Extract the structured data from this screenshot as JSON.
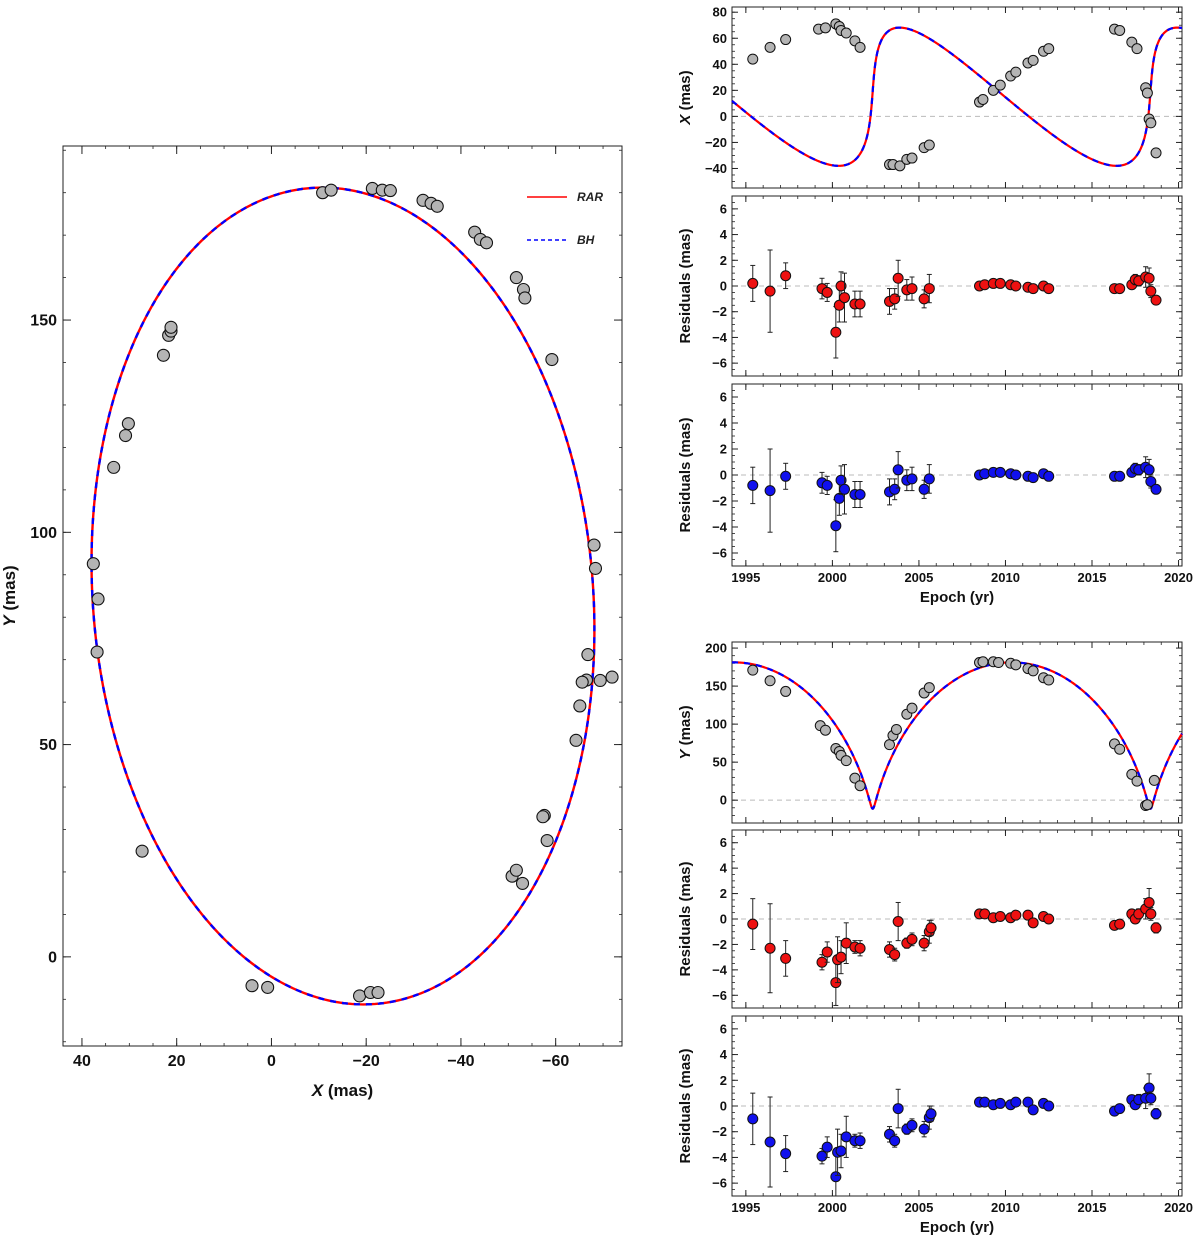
{
  "chart_data": [
    {
      "id": "orbit",
      "type": "scatter",
      "title": "",
      "xlabel_var": "X",
      "xlabel_unit": " (mas)",
      "ylabel_var": "Y",
      "ylabel_unit": " (mas)",
      "xlim": [
        44,
        -74
      ],
      "ylim": [
        -21,
        191
      ],
      "xticks": [
        40,
        20,
        0,
        -20,
        -40,
        -60
      ],
      "yticks": [
        0,
        50,
        100,
        150
      ],
      "legend_position": "top-right",
      "legend": [
        {
          "name": "RAR",
          "color": "#ff0000",
          "style": "solid"
        },
        {
          "name": "BH",
          "color": "#0000ff",
          "style": "dashed"
        }
      ],
      "orbit_model": {
        "center_x": -15.1,
        "center_y": 85.0,
        "semi_x": 52.9,
        "semi_y": 96.2,
        "y_axis_x": -10.0
      },
      "points": {
        "x": [
          -10.8,
          -12.6,
          -21.3,
          -23.4,
          -25.1,
          -32.0,
          -33.7,
          -35.0,
          -42.9,
          -44.1,
          -45.4,
          -51.7,
          -53.2,
          -53.5,
          -59.2,
          -68.1,
          -68.4,
          -66.8,
          -66.5,
          -69.4,
          -71.9,
          -65.6,
          -65.1,
          -64.3,
          -57.6,
          -57.3,
          -58.2,
          -50.8,
          -51.7,
          -53.0,
          -18.6,
          -20.9,
          -22.5,
          4.1,
          0.8,
          27.3,
          37.6,
          36.6,
          36.8,
          33.3,
          30.8,
          30.2,
          22.8,
          21.7,
          21.2,
          21.2
        ],
        "y": [
          180,
          180.6,
          181,
          180.6,
          180.5,
          178.2,
          177.5,
          176.8,
          170.7,
          169,
          168.2,
          160,
          157.2,
          155.2,
          140.7,
          97,
          91.5,
          71.2,
          65.2,
          65.1,
          65.9,
          64.7,
          59.1,
          51,
          33.3,
          33,
          27.4,
          19,
          20.4,
          17.3,
          -9.2,
          -8.4,
          -8.4,
          -6.8,
          -7.2,
          24.9,
          92.6,
          84.3,
          71.8,
          115.3,
          122.8,
          125.6,
          141.7,
          146.4,
          147.4,
          148.3
        ]
      }
    },
    {
      "id": "x-vs-epoch",
      "type": "line",
      "title": "",
      "xlabel": "",
      "ylabel_var": "X",
      "ylabel_unit": " (mas)",
      "xlim": [
        1994.2,
        2020.2
      ],
      "ylim": [
        -55,
        84
      ],
      "yticks": [
        -40,
        -20,
        0,
        20,
        40,
        60,
        80
      ],
      "model_period_yr": 16.05,
      "model_lines": [
        "RAR",
        "BH"
      ],
      "points": {
        "x": [
          1995.4,
          1996.4,
          1997.3,
          1999.2,
          1999.6,
          2000.2,
          2000.4,
          2000.5,
          2000.8,
          2001.3,
          2001.6,
          2003.3,
          2003.5,
          2003.9,
          2004.3,
          2004.6,
          2005.3,
          2005.6,
          2008.5,
          2008.7,
          2009.3,
          2009.7,
          2010.3,
          2010.6,
          2011.3,
          2011.6,
          2012.2,
          2012.5,
          2016.3,
          2016.6,
          2017.3,
          2017.6,
          2018.1,
          2018.2,
          2018.3,
          2018.4,
          2018.7
        ],
        "y": [
          44,
          53,
          59,
          67,
          68,
          71,
          69,
          66,
          64,
          58,
          53,
          -37,
          -37,
          -38,
          -33,
          -32,
          -24,
          -22,
          11,
          13,
          20,
          24,
          31,
          34,
          41,
          43,
          50,
          52,
          67,
          66,
          57,
          52,
          22,
          18,
          -2,
          -5,
          -28
        ]
      }
    },
    {
      "id": "x-residuals-rar",
      "type": "scatter",
      "title": "",
      "xlabel": "",
      "ylabel": "Residuals (mas)",
      "series_color": "#ee1111",
      "xlim": [
        1994.2,
        2020.2
      ],
      "ylim": [
        -7,
        7
      ],
      "yticks": [
        -6,
        -4,
        -2,
        0,
        2,
        4,
        6
      ],
      "points": {
        "x": [
          1995.4,
          1996.4,
          1997.3,
          1999.4,
          1999.7,
          2000.2,
          2000.4,
          2000.5,
          2000.7,
          2001.3,
          2001.6,
          2003.3,
          2003.6,
          2003.8,
          2004.3,
          2004.6,
          2005.3,
          2005.6,
          2008.5,
          2008.8,
          2009.3,
          2009.7,
          2010.3,
          2010.6,
          2011.3,
          2011.6,
          2012.2,
          2012.5,
          2016.3,
          2016.6,
          2017.3,
          2017.5,
          2017.7,
          2018.1,
          2018.3,
          2018.4,
          2018.7
        ],
        "y": [
          0.2,
          -0.4,
          0.8,
          -0.2,
          -0.5,
          -3.6,
          -1.5,
          0.0,
          -0.9,
          -1.4,
          -1.4,
          -1.2,
          -1.0,
          0.6,
          -0.3,
          -0.2,
          -1.0,
          -0.2,
          0.0,
          0.1,
          0.2,
          0.2,
          0.1,
          0.0,
          -0.1,
          -0.2,
          0.0,
          -0.2,
          -0.2,
          -0.2,
          0.1,
          0.5,
          0.4,
          0.7,
          0.6,
          -0.4,
          -1.1
        ],
        "err": [
          1.4,
          3.2,
          1.0,
          0.8,
          0.7,
          2.0,
          1.3,
          1.1,
          1.9,
          1.0,
          1.0,
          1.0,
          0.8,
          1.4,
          0.8,
          0.9,
          0.7,
          1.1,
          0.2,
          0.2,
          0.2,
          0.2,
          0.2,
          0.2,
          0.2,
          0.2,
          0.2,
          0.2,
          0.2,
          0.2,
          0.3,
          0.4,
          0.4,
          0.8,
          0.8,
          0.5,
          0.3
        ]
      }
    },
    {
      "id": "x-residuals-bh",
      "type": "scatter",
      "title": "",
      "xlabel": "Epoch (yr)",
      "ylabel": "Residuals (mas)",
      "series_color": "#1111ee",
      "xlim": [
        1994.2,
        2020.2
      ],
      "ylim": [
        -7,
        7
      ],
      "yticks": [
        -6,
        -4,
        -2,
        0,
        2,
        4,
        6
      ],
      "xticks": [
        1995,
        2000,
        2005,
        2010,
        2015,
        2020
      ],
      "points": {
        "x": [
          1995.4,
          1996.4,
          1997.3,
          1999.4,
          1999.7,
          2000.2,
          2000.4,
          2000.5,
          2000.7,
          2001.3,
          2001.6,
          2003.3,
          2003.6,
          2003.8,
          2004.3,
          2004.6,
          2005.3,
          2005.6,
          2008.5,
          2008.8,
          2009.3,
          2009.7,
          2010.3,
          2010.6,
          2011.3,
          2011.6,
          2012.2,
          2012.5,
          2016.3,
          2016.6,
          2017.3,
          2017.5,
          2017.7,
          2018.1,
          2018.3,
          2018.4,
          2018.7
        ],
        "y": [
          -0.8,
          -1.2,
          -0.1,
          -0.6,
          -0.8,
          -3.9,
          -1.8,
          -0.4,
          -1.1,
          -1.5,
          -1.5,
          -1.3,
          -1.1,
          0.4,
          -0.4,
          -0.3,
          -1.1,
          -0.3,
          0.0,
          0.1,
          0.2,
          0.2,
          0.1,
          0.0,
          -0.1,
          -0.2,
          0.1,
          -0.1,
          -0.1,
          -0.1,
          0.2,
          0.5,
          0.4,
          0.6,
          0.4,
          -0.5,
          -1.1
        ],
        "err": [
          1.4,
          3.2,
          1.0,
          0.8,
          0.7,
          2.0,
          1.3,
          1.1,
          1.9,
          1.0,
          1.0,
          1.0,
          0.8,
          1.4,
          0.8,
          0.9,
          0.7,
          1.1,
          0.2,
          0.2,
          0.2,
          0.2,
          0.2,
          0.2,
          0.2,
          0.2,
          0.2,
          0.2,
          0.2,
          0.2,
          0.3,
          0.4,
          0.4,
          0.8,
          0.8,
          0.5,
          0.3
        ]
      }
    },
    {
      "id": "y-vs-epoch",
      "type": "line",
      "title": "",
      "xlabel": "",
      "ylabel_var": "Y",
      "ylabel_unit": " (mas)",
      "xlim": [
        1994.2,
        2020.2
      ],
      "ylim": [
        -30,
        208
      ],
      "yticks": [
        0,
        50,
        100,
        150,
        200
      ],
      "model_period_yr": 16.05,
      "model_lines": [
        "RAR",
        "BH"
      ],
      "points": {
        "x": [
          1995.4,
          1996.4,
          1997.3,
          1999.3,
          1999.6,
          2000.2,
          2000.4,
          2000.5,
          2000.8,
          2001.3,
          2001.6,
          2003.3,
          2003.5,
          2003.7,
          2004.3,
          2004.6,
          2005.3,
          2005.6,
          2008.5,
          2008.7,
          2009.3,
          2009.6,
          2010.3,
          2010.6,
          2011.3,
          2011.6,
          2012.2,
          2012.5,
          2016.3,
          2016.6,
          2017.3,
          2017.6,
          2018.1,
          2018.2,
          2018.6
        ],
        "y": [
          171,
          157,
          143,
          98,
          92,
          68,
          64,
          59,
          52,
          29,
          19,
          73,
          85,
          93,
          113,
          121,
          141,
          148,
          181,
          182,
          182,
          181,
          180,
          178,
          173,
          170,
          161,
          158,
          74,
          67,
          34,
          25,
          -7,
          -6,
          26
        ]
      }
    },
    {
      "id": "y-residuals-rar",
      "type": "scatter",
      "title": "",
      "xlabel": "",
      "ylabel": "Residuals (mas)",
      "series_color": "#ee1111",
      "xlim": [
        1994.2,
        2020.2
      ],
      "ylim": [
        -7,
        7
      ],
      "yticks": [
        -6,
        -4,
        -2,
        0,
        2,
        4,
        6
      ],
      "points": {
        "x": [
          1995.4,
          1996.4,
          1997.3,
          1999.4,
          1999.7,
          2000.2,
          2000.3,
          2000.5,
          2000.8,
          2001.3,
          2001.6,
          2003.3,
          2003.6,
          2003.8,
          2004.3,
          2004.6,
          2005.3,
          2005.6,
          2005.7,
          2008.5,
          2008.8,
          2009.3,
          2009.7,
          2010.3,
          2010.6,
          2011.3,
          2011.6,
          2012.2,
          2012.5,
          2016.3,
          2016.6,
          2017.3,
          2017.5,
          2017.7,
          2018.1,
          2018.3,
          2018.4,
          2018.7
        ],
        "y": [
          -0.4,
          -2.3,
          -3.1,
          -3.4,
          -2.6,
          -5.0,
          -3.2,
          -3.0,
          -1.9,
          -2.2,
          -2.3,
          -2.4,
          -2.8,
          -0.2,
          -1.9,
          -1.6,
          -1.9,
          -1.0,
          -0.7,
          0.4,
          0.4,
          0.1,
          0.2,
          0.1,
          0.3,
          0.3,
          -0.3,
          0.2,
          0.0,
          -0.5,
          -0.4,
          0.4,
          0.0,
          0.4,
          0.8,
          1.3,
          0.4,
          -0.7
        ],
        "err": [
          2.0,
          3.5,
          1.4,
          0.6,
          0.8,
          1.8,
          1.8,
          1.3,
          1.6,
          0.5,
          0.6,
          0.6,
          0.5,
          1.5,
          0.4,
          0.5,
          0.6,
          0.9,
          0.6,
          0.2,
          0.2,
          0.2,
          0.2,
          0.2,
          0.2,
          0.2,
          0.2,
          0.2,
          0.2,
          0.2,
          0.2,
          0.3,
          0.3,
          0.4,
          0.8,
          1.1,
          0.5,
          0.4
        ]
      }
    },
    {
      "id": "y-residuals-bh",
      "type": "scatter",
      "title": "",
      "xlabel": "Epoch (yr)",
      "ylabel": "Residuals (mas)",
      "series_color": "#1111ee",
      "xlim": [
        1994.2,
        2020.2
      ],
      "ylim": [
        -7,
        7
      ],
      "yticks": [
        -6,
        -4,
        -2,
        0,
        2,
        4,
        6
      ],
      "xticks": [
        1995,
        2000,
        2005,
        2010,
        2015,
        2020
      ],
      "points": {
        "x": [
          1995.4,
          1996.4,
          1997.3,
          1999.4,
          1999.7,
          2000.2,
          2000.3,
          2000.5,
          2000.8,
          2001.3,
          2001.6,
          2003.3,
          2003.6,
          2003.8,
          2004.3,
          2004.6,
          2005.3,
          2005.6,
          2005.7,
          2008.5,
          2008.8,
          2009.3,
          2009.7,
          2010.3,
          2010.6,
          2011.3,
          2011.6,
          2012.2,
          2012.5,
          2016.3,
          2016.6,
          2017.3,
          2017.5,
          2017.7,
          2018.1,
          2018.3,
          2018.4,
          2018.7
        ],
        "y": [
          -1.0,
          -2.8,
          -3.7,
          -3.9,
          -3.2,
          -5.5,
          -3.6,
          -3.5,
          -2.4,
          -2.7,
          -2.7,
          -2.2,
          -2.7,
          -0.2,
          -1.8,
          -1.5,
          -1.8,
          -0.9,
          -0.6,
          0.3,
          0.3,
          0.1,
          0.2,
          0.1,
          0.3,
          0.3,
          -0.3,
          0.2,
          0.0,
          -0.4,
          -0.2,
          0.5,
          0.1,
          0.5,
          0.6,
          1.4,
          0.6,
          -0.6
        ],
        "err": [
          2.0,
          3.5,
          1.4,
          0.6,
          0.8,
          1.8,
          1.8,
          1.3,
          1.6,
          0.5,
          0.6,
          0.6,
          0.5,
          1.5,
          0.4,
          0.5,
          0.6,
          0.9,
          0.6,
          0.2,
          0.2,
          0.2,
          0.2,
          0.2,
          0.2,
          0.2,
          0.2,
          0.2,
          0.2,
          0.2,
          0.2,
          0.3,
          0.3,
          0.4,
          0.8,
          1.1,
          0.5,
          0.4
        ]
      }
    }
  ]
}
